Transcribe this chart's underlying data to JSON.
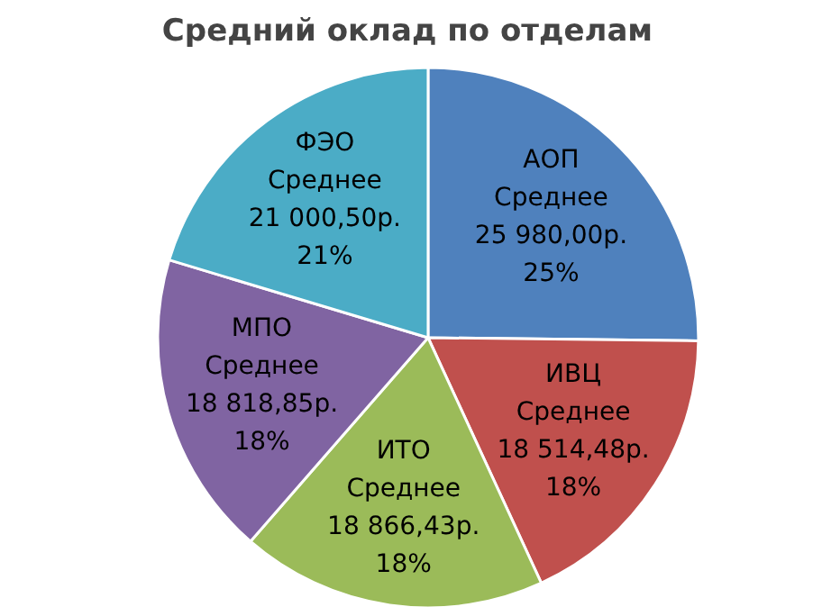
{
  "chart_data": {
    "type": "pie",
    "title": "Средний оклад по отделам",
    "categories": [
      "АОП",
      "ИВЦ",
      "ИТО",
      "МПО",
      "ФЭО"
    ],
    "values": [
      25980.0,
      18514.48,
      18866.43,
      18818.85,
      21000.5
    ],
    "colors": [
      "#4f81bd",
      "#c0504d",
      "#9bbb59",
      "#8064a2",
      "#4bacc6"
    ],
    "value_labels": [
      "Среднее\n25 980,00р.\n25%",
      "Среднее\n18 514,48р.\n18%",
      "Среднее\n18 866,43р.\n18%",
      "Среднее\n18 818,85р.\n18%",
      "Среднее\n21 000,50р.\n21%"
    ]
  }
}
